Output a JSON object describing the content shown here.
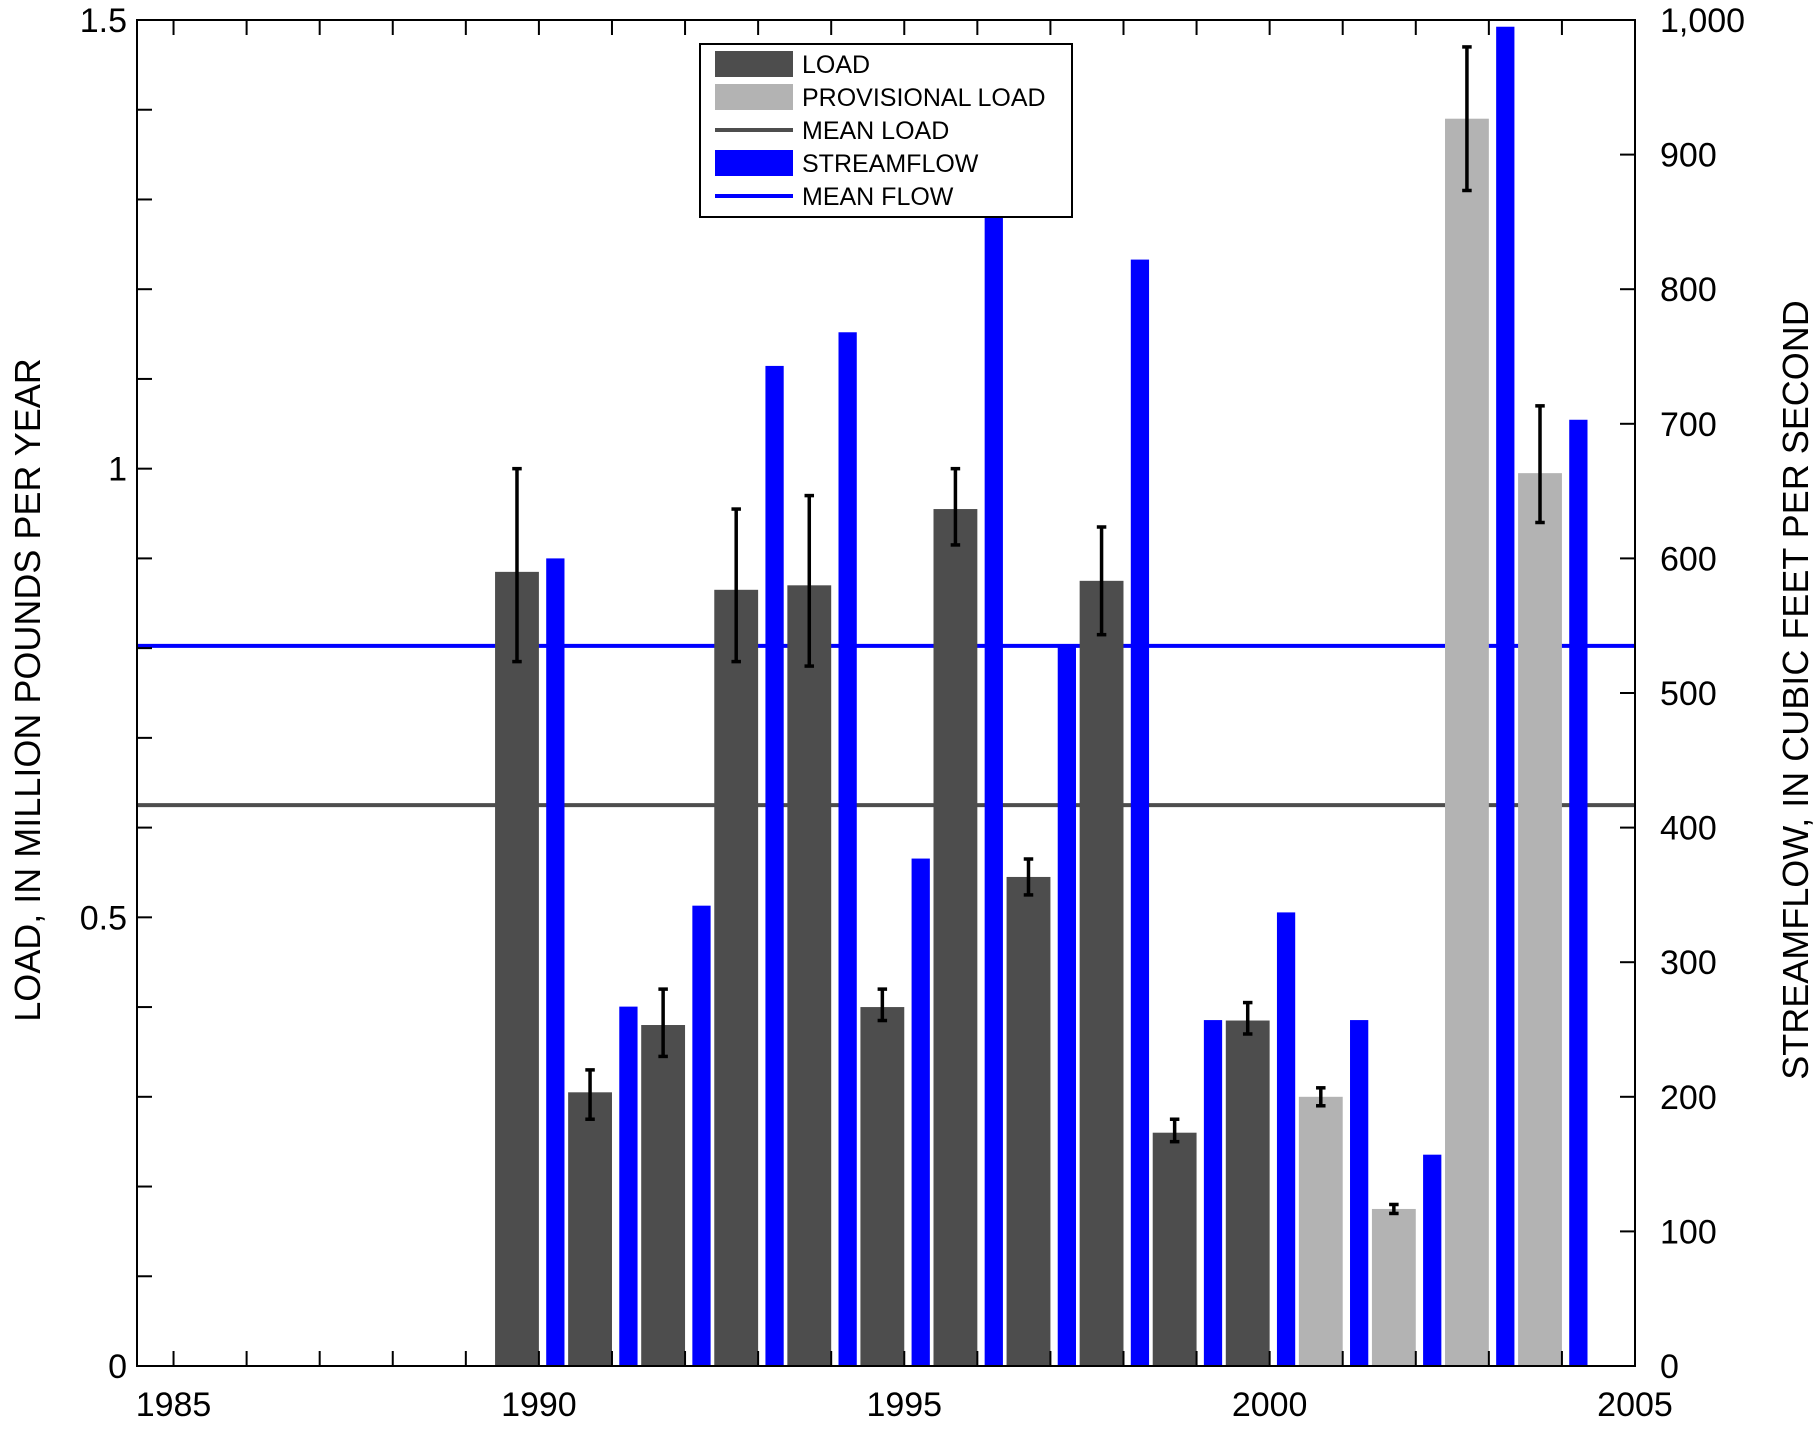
{
  "chart_data": {
    "type": "bar",
    "xlabel": "",
    "xlim": [
      1984.5,
      2005
    ],
    "x_ticks": [
      1985,
      1990,
      1995,
      2000,
      2005
    ],
    "x_tick_labels": [
      "1985",
      "1990",
      "1995",
      "2000",
      "2005"
    ],
    "left_axis": {
      "label": "LOAD, IN MILLION POUNDS PER YEAR",
      "ylim": [
        0,
        1.5
      ],
      "ticks": [
        0,
        0.5,
        1,
        1.5
      ],
      "tick_labels": [
        "0",
        "0.5",
        "1",
        "1.5"
      ]
    },
    "right_axis": {
      "label": "STREAMFLOW, IN CUBIC FEET PER SECOND",
      "ylim": [
        0,
        1000
      ],
      "ticks": [
        0,
        100,
        200,
        300,
        400,
        500,
        600,
        700,
        800,
        900,
        1000
      ],
      "tick_labels": [
        "0",
        "100",
        "200",
        "300",
        "400",
        "500",
        "600",
        "700",
        "800",
        "900",
        "1,000"
      ]
    },
    "legend": {
      "placement": "top-center",
      "entries": [
        {
          "label": "LOAD",
          "kind": "bar",
          "color": "#4d4d4d"
        },
        {
          "label": "PROVISIONAL LOAD",
          "kind": "bar",
          "color": "#b3b3b3"
        },
        {
          "label": "MEAN LOAD",
          "kind": "line",
          "color": "#4d4d4d"
        },
        {
          "label": "STREAMFLOW",
          "kind": "bar",
          "color": "#0000ff"
        },
        {
          "label": "MEAN FLOW",
          "kind": "line",
          "color": "#0000ff"
        }
      ]
    },
    "colors": {
      "load": "#4d4d4d",
      "provisional_load": "#b3b3b3",
      "streamflow": "#0000ff",
      "mean_load": "#4d4d4d",
      "mean_flow": "#0000ff"
    },
    "mean_load": 0.625,
    "mean_flow": 535,
    "years": [
      1990,
      1991,
      1992,
      1993,
      1994,
      1995,
      1996,
      1997,
      1998,
      1999,
      2000,
      2001,
      2002,
      2003,
      2004
    ],
    "load": [
      0.885,
      0.305,
      0.38,
      0.865,
      0.87,
      0.4,
      0.955,
      0.545,
      0.875,
      0.26,
      0.385,
      0.3,
      0.175,
      1.39,
      0.995
    ],
    "provisional": [
      false,
      false,
      false,
      false,
      false,
      false,
      false,
      false,
      false,
      false,
      false,
      true,
      true,
      true,
      true
    ],
    "load_error_low": [
      0.785,
      0.275,
      0.345,
      0.785,
      0.78,
      0.385,
      0.915,
      0.525,
      0.815,
      0.25,
      0.37,
      0.29,
      0.17,
      1.31,
      0.94
    ],
    "load_error_high": [
      1.0,
      0.33,
      0.42,
      0.955,
      0.97,
      0.42,
      1.0,
      0.565,
      0.935,
      0.275,
      0.405,
      0.31,
      0.18,
      1.47,
      1.07
    ],
    "streamflow": [
      600,
      267,
      342,
      743,
      768,
      377,
      858,
      535,
      822,
      257,
      337,
      257,
      157,
      995,
      703
    ]
  }
}
